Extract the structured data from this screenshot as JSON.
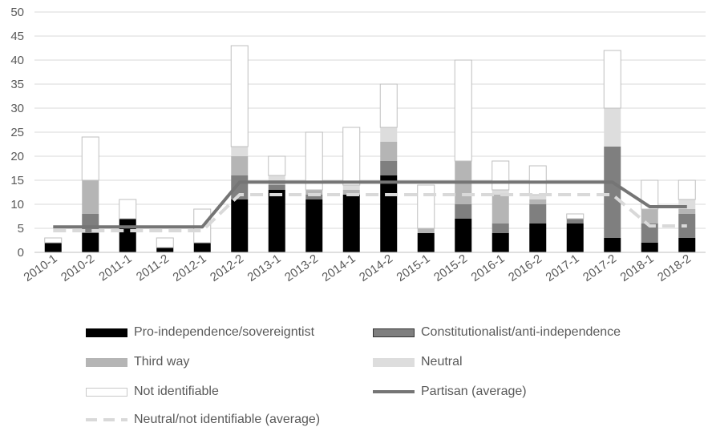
{
  "chart_data": {
    "type": "bar",
    "stacked": true,
    "categories": [
      "2010-1",
      "2010-2",
      "2011-1",
      "2011-2",
      "2012-1",
      "2012-2",
      "2013-1",
      "2013-2",
      "2014-1",
      "2014-2",
      "2015-1",
      "2015-2",
      "2016-1",
      "2016-2",
      "2017-1",
      "2017-2",
      "2018-1",
      "2018-2"
    ],
    "ylim": [
      0,
      50
    ],
    "yticks": [
      "0",
      "5",
      "10",
      "15",
      "20",
      "25",
      "30",
      "35",
      "40",
      "45",
      "50"
    ],
    "grid": true,
    "legend_position": "bottom",
    "series": [
      {
        "name": "Pro-independence/sovereigntist",
        "kind": "bar",
        "color": "#000000",
        "values": [
          2,
          4,
          7,
          1,
          2,
          11,
          13,
          11,
          12,
          16,
          4,
          7,
          4,
          6,
          6,
          3,
          2,
          3
        ]
      },
      {
        "name": "Constitutionalist/anti-independence",
        "kind": "bar",
        "color": "#7f7f7f",
        "values": [
          0,
          4,
          0,
          0,
          0,
          5,
          1,
          1,
          0,
          3,
          0,
          3,
          2,
          4,
          1,
          19,
          4,
          5
        ]
      },
      {
        "name": "Third way",
        "kind": "bar",
        "color": "#b5b5b5",
        "values": [
          0,
          7,
          0,
          0,
          0,
          4,
          1,
          1,
          1,
          4,
          1,
          9,
          6,
          1,
          0,
          0,
          3,
          1
        ]
      },
      {
        "name": "Neutral",
        "kind": "bar",
        "color": "#dddddd",
        "values": [
          0,
          0,
          0,
          0,
          0,
          2,
          1,
          0,
          1,
          3,
          0,
          0,
          1,
          1,
          0,
          8,
          0,
          2
        ]
      },
      {
        "name": "Not identifiable",
        "kind": "bar",
        "color": "#ffffff",
        "values": [
          1,
          9,
          4,
          2,
          7,
          21,
          4,
          12,
          12,
          9,
          9,
          21,
          6,
          6,
          1,
          12,
          6,
          4
        ]
      },
      {
        "name": "Partisan (average)",
        "kind": "line",
        "color": "#757575",
        "values": [
          5.3,
          5.3,
          5.3,
          5.3,
          5.3,
          14.6,
          14.6,
          14.6,
          14.6,
          14.6,
          14.6,
          14.6,
          14.6,
          14.6,
          14.6,
          14.6,
          9.5,
          9.5
        ]
      },
      {
        "name": "Neutral/not identifiable (average)",
        "kind": "dashed-line",
        "color": "#d9d9d9",
        "values": [
          4.5,
          4.5,
          4.5,
          4.5,
          4.5,
          12,
          12,
          12,
          12,
          12,
          12,
          12,
          12,
          12,
          12,
          12,
          5.5,
          5.5
        ]
      }
    ]
  }
}
